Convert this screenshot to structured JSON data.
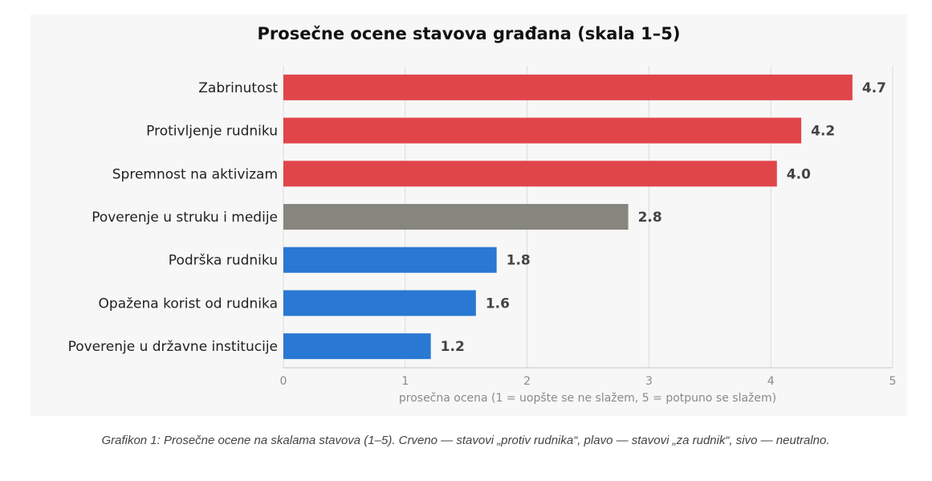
{
  "chart_data": {
    "type": "bar",
    "orientation": "horizontal",
    "title": "Prosečne ocene stavova građana (skala 1–5)",
    "xlabel": "prosečna ocena (1 = uopšte se ne slažem, 5 = potpuno se slažem)",
    "ylabel": "",
    "xlim": [
      0,
      5
    ],
    "xticks": [
      "0",
      "1",
      "2",
      "3",
      "4",
      "5"
    ],
    "grid": "vertical",
    "categories": [
      "Zabrinutost",
      "Protivljenje rudniku",
      "Spremnost na aktivizam",
      "Poverenje u struku i medije",
      "Podrška rudniku",
      "Opažena korist od rudnika",
      "Poverenje u državne institucije"
    ],
    "values": [
      4.67,
      4.25,
      4.05,
      2.83,
      1.75,
      1.58,
      1.21
    ],
    "value_labels": [
      "4.7",
      "4.2",
      "4.0",
      "2.8",
      "1.8",
      "1.6",
      "1.2"
    ],
    "bar_colors": [
      "#e0454a",
      "#e0454a",
      "#e0454a",
      "#86857e",
      "#2978d3",
      "#2978d3",
      "#2978d3"
    ]
  },
  "caption": "Grafikon 1: Prosečne ocene na skalama stavova (1–5). Crveno — stavovi „protiv rudnika“, plavo — stavovi „za rudnik“, sivo — neutralno."
}
